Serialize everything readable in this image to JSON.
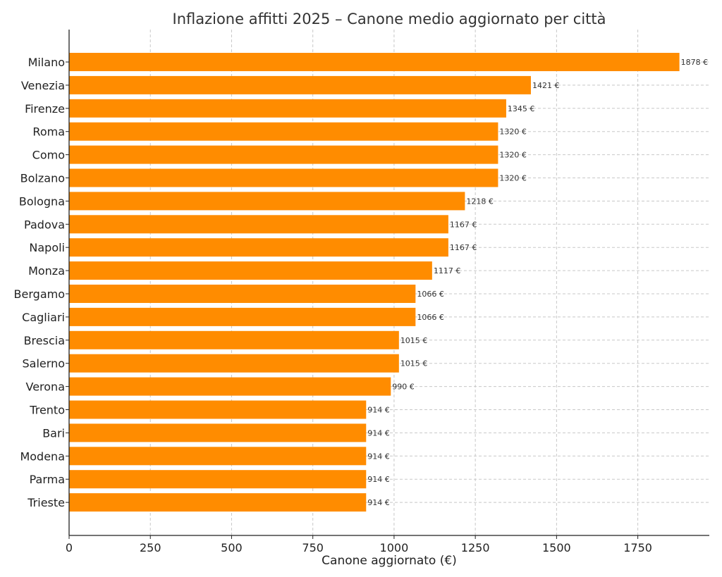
{
  "chart_data": {
    "type": "bar",
    "orientation": "horizontal",
    "title": "Inflazione affitti 2025 – Canone medio aggiornato per città",
    "xlabel": "Canone aggiornato (€)",
    "ylabel": "",
    "xlim": [
      0,
      1970
    ],
    "xticks": [
      0,
      250,
      500,
      750,
      1000,
      1250,
      1500,
      1750
    ],
    "grid": true,
    "bar_color": "#ff8c00",
    "value_suffix": " €",
    "categories": [
      "Milano",
      "Venezia",
      "Firenze",
      "Roma",
      "Como",
      "Bolzano",
      "Bologna",
      "Padova",
      "Napoli",
      "Monza",
      "Bergamo",
      "Cagliari",
      "Brescia",
      "Salerno",
      "Verona",
      "Trento",
      "Bari",
      "Modena",
      "Parma",
      "Trieste"
    ],
    "values": [
      1878,
      1421,
      1345,
      1320,
      1320,
      1320,
      1218,
      1167,
      1167,
      1117,
      1066,
      1066,
      1015,
      1015,
      990,
      914,
      914,
      914,
      914,
      914
    ]
  }
}
